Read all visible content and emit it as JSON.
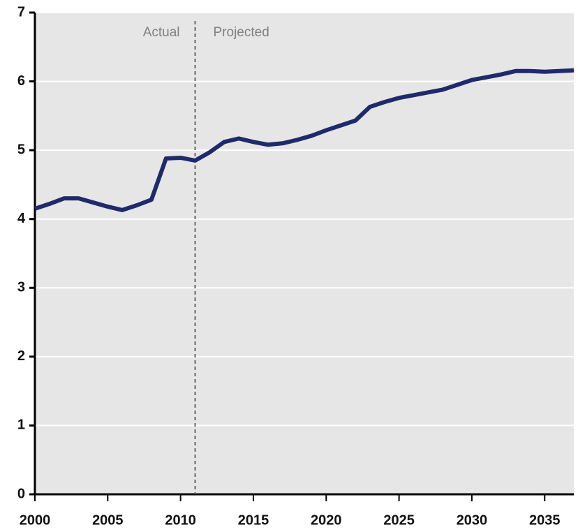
{
  "chart_data": {
    "type": "line",
    "x": [
      2000,
      2001,
      2002,
      2003,
      2004,
      2005,
      2006,
      2007,
      2008,
      2009,
      2010,
      2011,
      2012,
      2013,
      2014,
      2015,
      2016,
      2017,
      2018,
      2019,
      2020,
      2021,
      2022,
      2023,
      2024,
      2025,
      2026,
      2027,
      2028,
      2029,
      2030,
      2031,
      2032,
      2033,
      2034,
      2035,
      2036,
      2037
    ],
    "series": [
      {
        "color": "#1f2a6b",
        "values": [
          4.15,
          4.22,
          4.3,
          4.3,
          4.24,
          4.18,
          4.13,
          4.2,
          4.28,
          4.88,
          4.89,
          4.85,
          4.97,
          5.12,
          5.17,
          5.12,
          5.08,
          5.1,
          5.15,
          5.21,
          5.29,
          5.36,
          5.43,
          5.63,
          5.7,
          5.76,
          5.8,
          5.84,
          5.88,
          5.95,
          6.02,
          6.06,
          6.1,
          6.15,
          6.15,
          6.14,
          6.15,
          6.16
        ]
      }
    ],
    "xlim": [
      2000,
      2037
    ],
    "xticks": [
      2000,
      2005,
      2010,
      2015,
      2020,
      2025,
      2030,
      2035
    ],
    "ylim": [
      0,
      7
    ],
    "yticks": [
      0,
      1,
      2,
      3,
      4,
      5,
      6,
      7
    ],
    "grid": true,
    "divider_x": 2011,
    "annotations": [
      "Actual",
      "Projected"
    ]
  }
}
